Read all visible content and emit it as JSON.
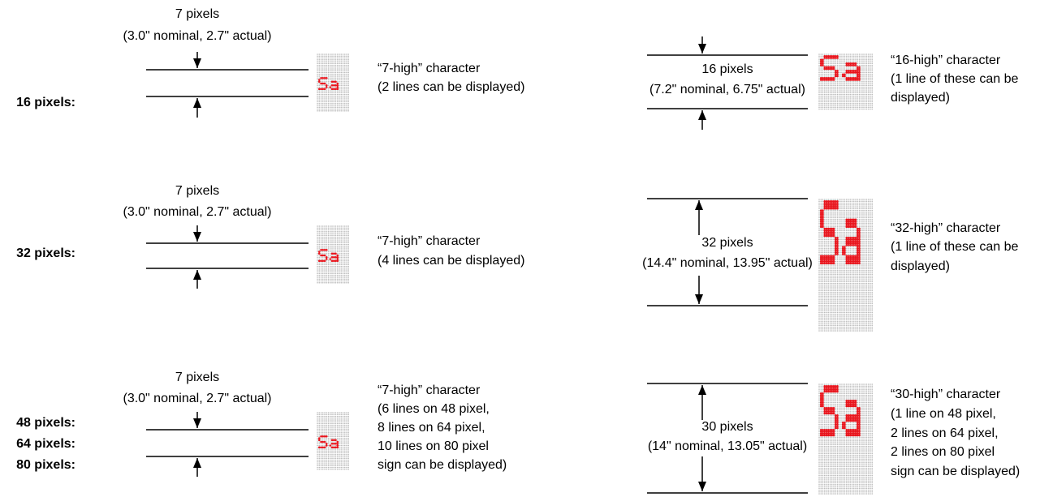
{
  "rows": [
    {
      "labels": [
        "16 pixels:"
      ],
      "left": {
        "measure": "7 pixels",
        "note": "(3.0\" nominal, 2.7\" actual)",
        "caption": [
          "“7-high” character",
          "(2 lines can be displayed)"
        ]
      },
      "right": {
        "measure": "16 pixels",
        "note": "(7.2\" nominal, 6.75\" actual)",
        "caption": [
          "“16-high” character",
          "(1 line of these can be",
          "displayed)"
        ]
      }
    },
    {
      "labels": [
        "32 pixels:"
      ],
      "left": {
        "measure": "7 pixels",
        "note": "(3.0\" nominal, 2.7\" actual)",
        "caption": [
          "“7-high” character",
          "(4 lines can be displayed)"
        ]
      },
      "right": {
        "measure": "32 pixels",
        "note": "(14.4\" nominal, 13.95\" actual)",
        "caption": [
          "“32-high” character",
          "(1 line of these can be",
          "displayed)"
        ]
      }
    },
    {
      "labels": [
        "48 pixels:",
        "64 pixels:",
        "80 pixels:"
      ],
      "left": {
        "measure": "7 pixels",
        "note": "(3.0\" nominal, 2.7\" actual)",
        "caption": [
          "“7-high” character",
          "(6 lines on 48 pixel,",
          "8 lines on 64 pixel,",
          "10 lines on 80 pixel",
          "sign can be displayed)"
        ]
      },
      "right": {
        "measure": "30 pixels",
        "note": "(14\" nominal, 13.05\" actual)",
        "caption": [
          "“30-high” character",
          "(1 line on 48 pixel,",
          "2 lines on 64 pixel,",
          "2 lines on 80 pixel",
          "sign can be displayed)"
        ]
      }
    }
  ]
}
